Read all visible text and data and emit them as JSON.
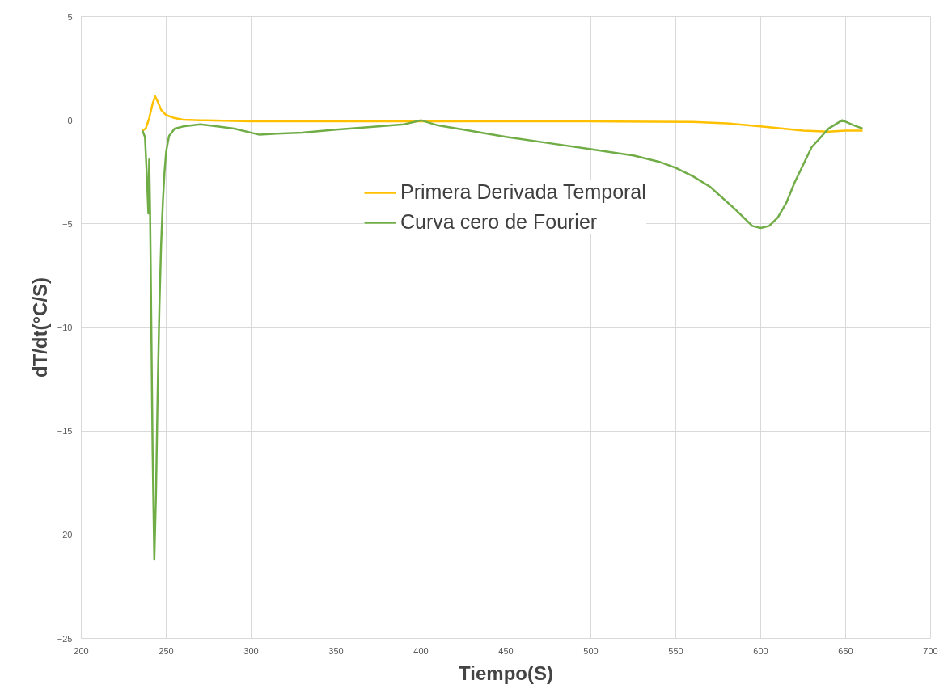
{
  "chart_data": {
    "type": "line",
    "xlabel": "Tiempo(S)",
    "ylabel": "dT/dt(°C/S)",
    "xlim": [
      200,
      700
    ],
    "ylim": [
      -25,
      5
    ],
    "xticks": [
      200,
      250,
      300,
      350,
      400,
      450,
      500,
      550,
      600,
      650,
      700
    ],
    "yticks": [
      -25,
      -20,
      -15,
      -10,
      -5,
      0,
      5
    ],
    "grid": true,
    "legend": "top",
    "marker": "none",
    "line_style": "solid",
    "series": [
      {
        "name": "Primera Derivada Temporal",
        "color": "#ffc000",
        "x": [
          236,
          238,
          240,
          242,
          243.5,
          245,
          247,
          250,
          255,
          260,
          270,
          300,
          400,
          500,
          560,
          580,
          600,
          625,
          640,
          650,
          660
        ],
        "values": [
          -0.5,
          -0.4,
          0.1,
          0.8,
          1.15,
          0.9,
          0.5,
          0.25,
          0.1,
          0.03,
          0,
          -0.05,
          -0.05,
          -0.05,
          -0.08,
          -0.15,
          -0.3,
          -0.5,
          -0.55,
          -0.5,
          -0.5
        ]
      },
      {
        "name": "Curva cero de Fourier",
        "color": "#70ad47",
        "x": [
          236,
          237.5,
          238.5,
          239.5,
          240,
          240.5,
          241,
          242,
          243,
          244,
          245,
          246,
          247,
          248,
          249,
          250,
          251.7,
          255,
          260,
          270,
          280,
          290,
          305,
          315,
          330,
          350,
          375,
          390,
          400,
          410,
          425,
          450,
          475,
          500,
          525,
          540,
          550,
          560,
          570,
          585,
          595,
          600,
          605,
          610,
          615,
          620,
          630,
          640,
          648,
          655,
          660
        ],
        "values": [
          -0.5,
          -0.8,
          -2.5,
          -4.5,
          -1.9,
          -4.3,
          -8,
          -16,
          -21.2,
          -18,
          -13,
          -9,
          -6,
          -4,
          -2.5,
          -1.5,
          -0.75,
          -0.4,
          -0.3,
          -0.2,
          -0.3,
          -0.4,
          -0.7,
          -0.65,
          -0.6,
          -0.45,
          -0.3,
          -0.2,
          0,
          -0.25,
          -0.45,
          -0.8,
          -1.1,
          -1.4,
          -1.7,
          -2.0,
          -2.3,
          -2.7,
          -3.2,
          -4.3,
          -5.1,
          -5.2,
          -5.1,
          -4.7,
          -4.0,
          -3.0,
          -1.3,
          -0.4,
          0,
          -0.25,
          -0.4
        ]
      }
    ]
  }
}
